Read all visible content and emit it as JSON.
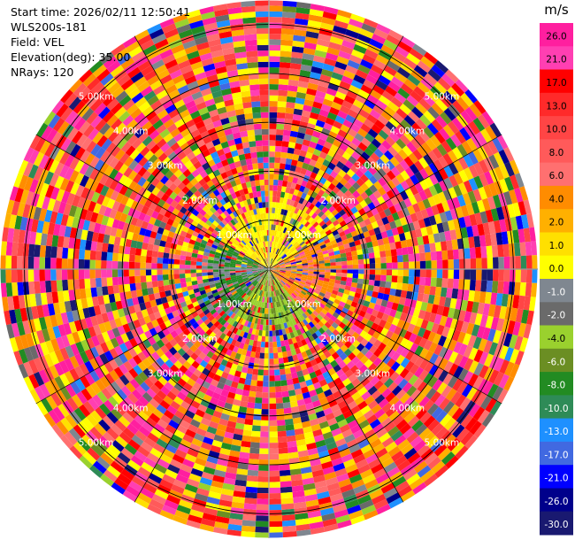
{
  "info": {
    "start_time": "Start time: 2026/02/11 12:50:41",
    "instrument": "WLS200s-181",
    "field": "Field: VEL",
    "elevation": "Elevation(deg): 35.00",
    "nrays": "NRays: 120"
  },
  "chart_data": {
    "type": "heatmap",
    "projection": "polar-ppi",
    "field": "VEL",
    "n_rays": 120,
    "range_rings_km": [
      "1.00km",
      "2.00km",
      "3.00km",
      "4.00km",
      "5.00km"
    ],
    "max_range_km": 5.5,
    "colorbar": {
      "unit": "m/s",
      "ticks": [
        "26.0",
        "21.0",
        "17.0",
        "13.0",
        "10.0",
        "8.0",
        "6.0",
        "4.0",
        "2.0",
        "1.0",
        "0.0",
        "-1.0",
        "-2.0",
        "-4.0",
        "-6.0",
        "-8.0",
        "-10.0",
        "-13.0",
        "-17.0",
        "-21.0",
        "-26.0",
        "-30.0"
      ],
      "colors": [
        "#ff1f9f",
        "#ff3fb2",
        "#ff0000",
        "#ff2a2a",
        "#ff4545",
        "#ff5a5a",
        "#ff7070",
        "#ff8c00",
        "#ffb000",
        "#ffe000",
        "#ffff00",
        "#7f8790",
        "#6a6a6a",
        "#9ad12e",
        "#6b8e23",
        "#228b22",
        "#2e8b57",
        "#1e90ff",
        "#4169e1",
        "#0000ff",
        "#00008b",
        "#191970"
      ]
    },
    "grid": true
  }
}
